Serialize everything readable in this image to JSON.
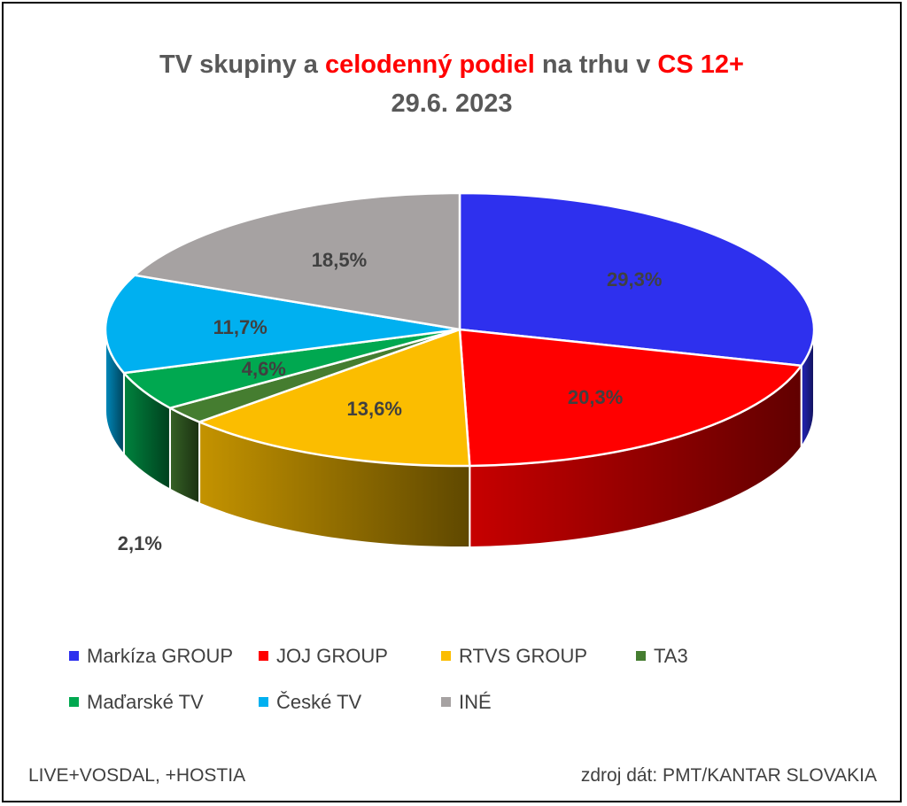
{
  "title": {
    "part1": "TV skupiny a ",
    "part2": "celodenný podiel",
    "part3": " na trhu v ",
    "part4": "CS 12+",
    "line2": "29.6. 2023"
  },
  "chart_data": {
    "type": "pie",
    "three_d": true,
    "unit": "%",
    "categories": [
      "Markíza GROUP",
      "JOJ GROUP",
      "RTVS GROUP",
      "TA3",
      "Maďarské  TV",
      "České  TV",
      "INÉ"
    ],
    "values": [
      29.3,
      20.3,
      13.6,
      2.1,
      4.6,
      11.7,
      18.5
    ],
    "data_labels": [
      "29,3%",
      "20,3%",
      "13,6%",
      "2,1%",
      "4,6%",
      "11,7%",
      "18,5%"
    ],
    "colors": [
      "#2e30ee",
      "#ff0000",
      "#fbbd00",
      "#457d30",
      "#00a850",
      "#00b0f0",
      "#a6a2a2"
    ],
    "legend_position": "bottom"
  },
  "footer": {
    "left": "LIVE+VOSDAL, +HOSTIA",
    "right": "zdroj dát: PMT/KANTAR SLOVAKIA"
  }
}
